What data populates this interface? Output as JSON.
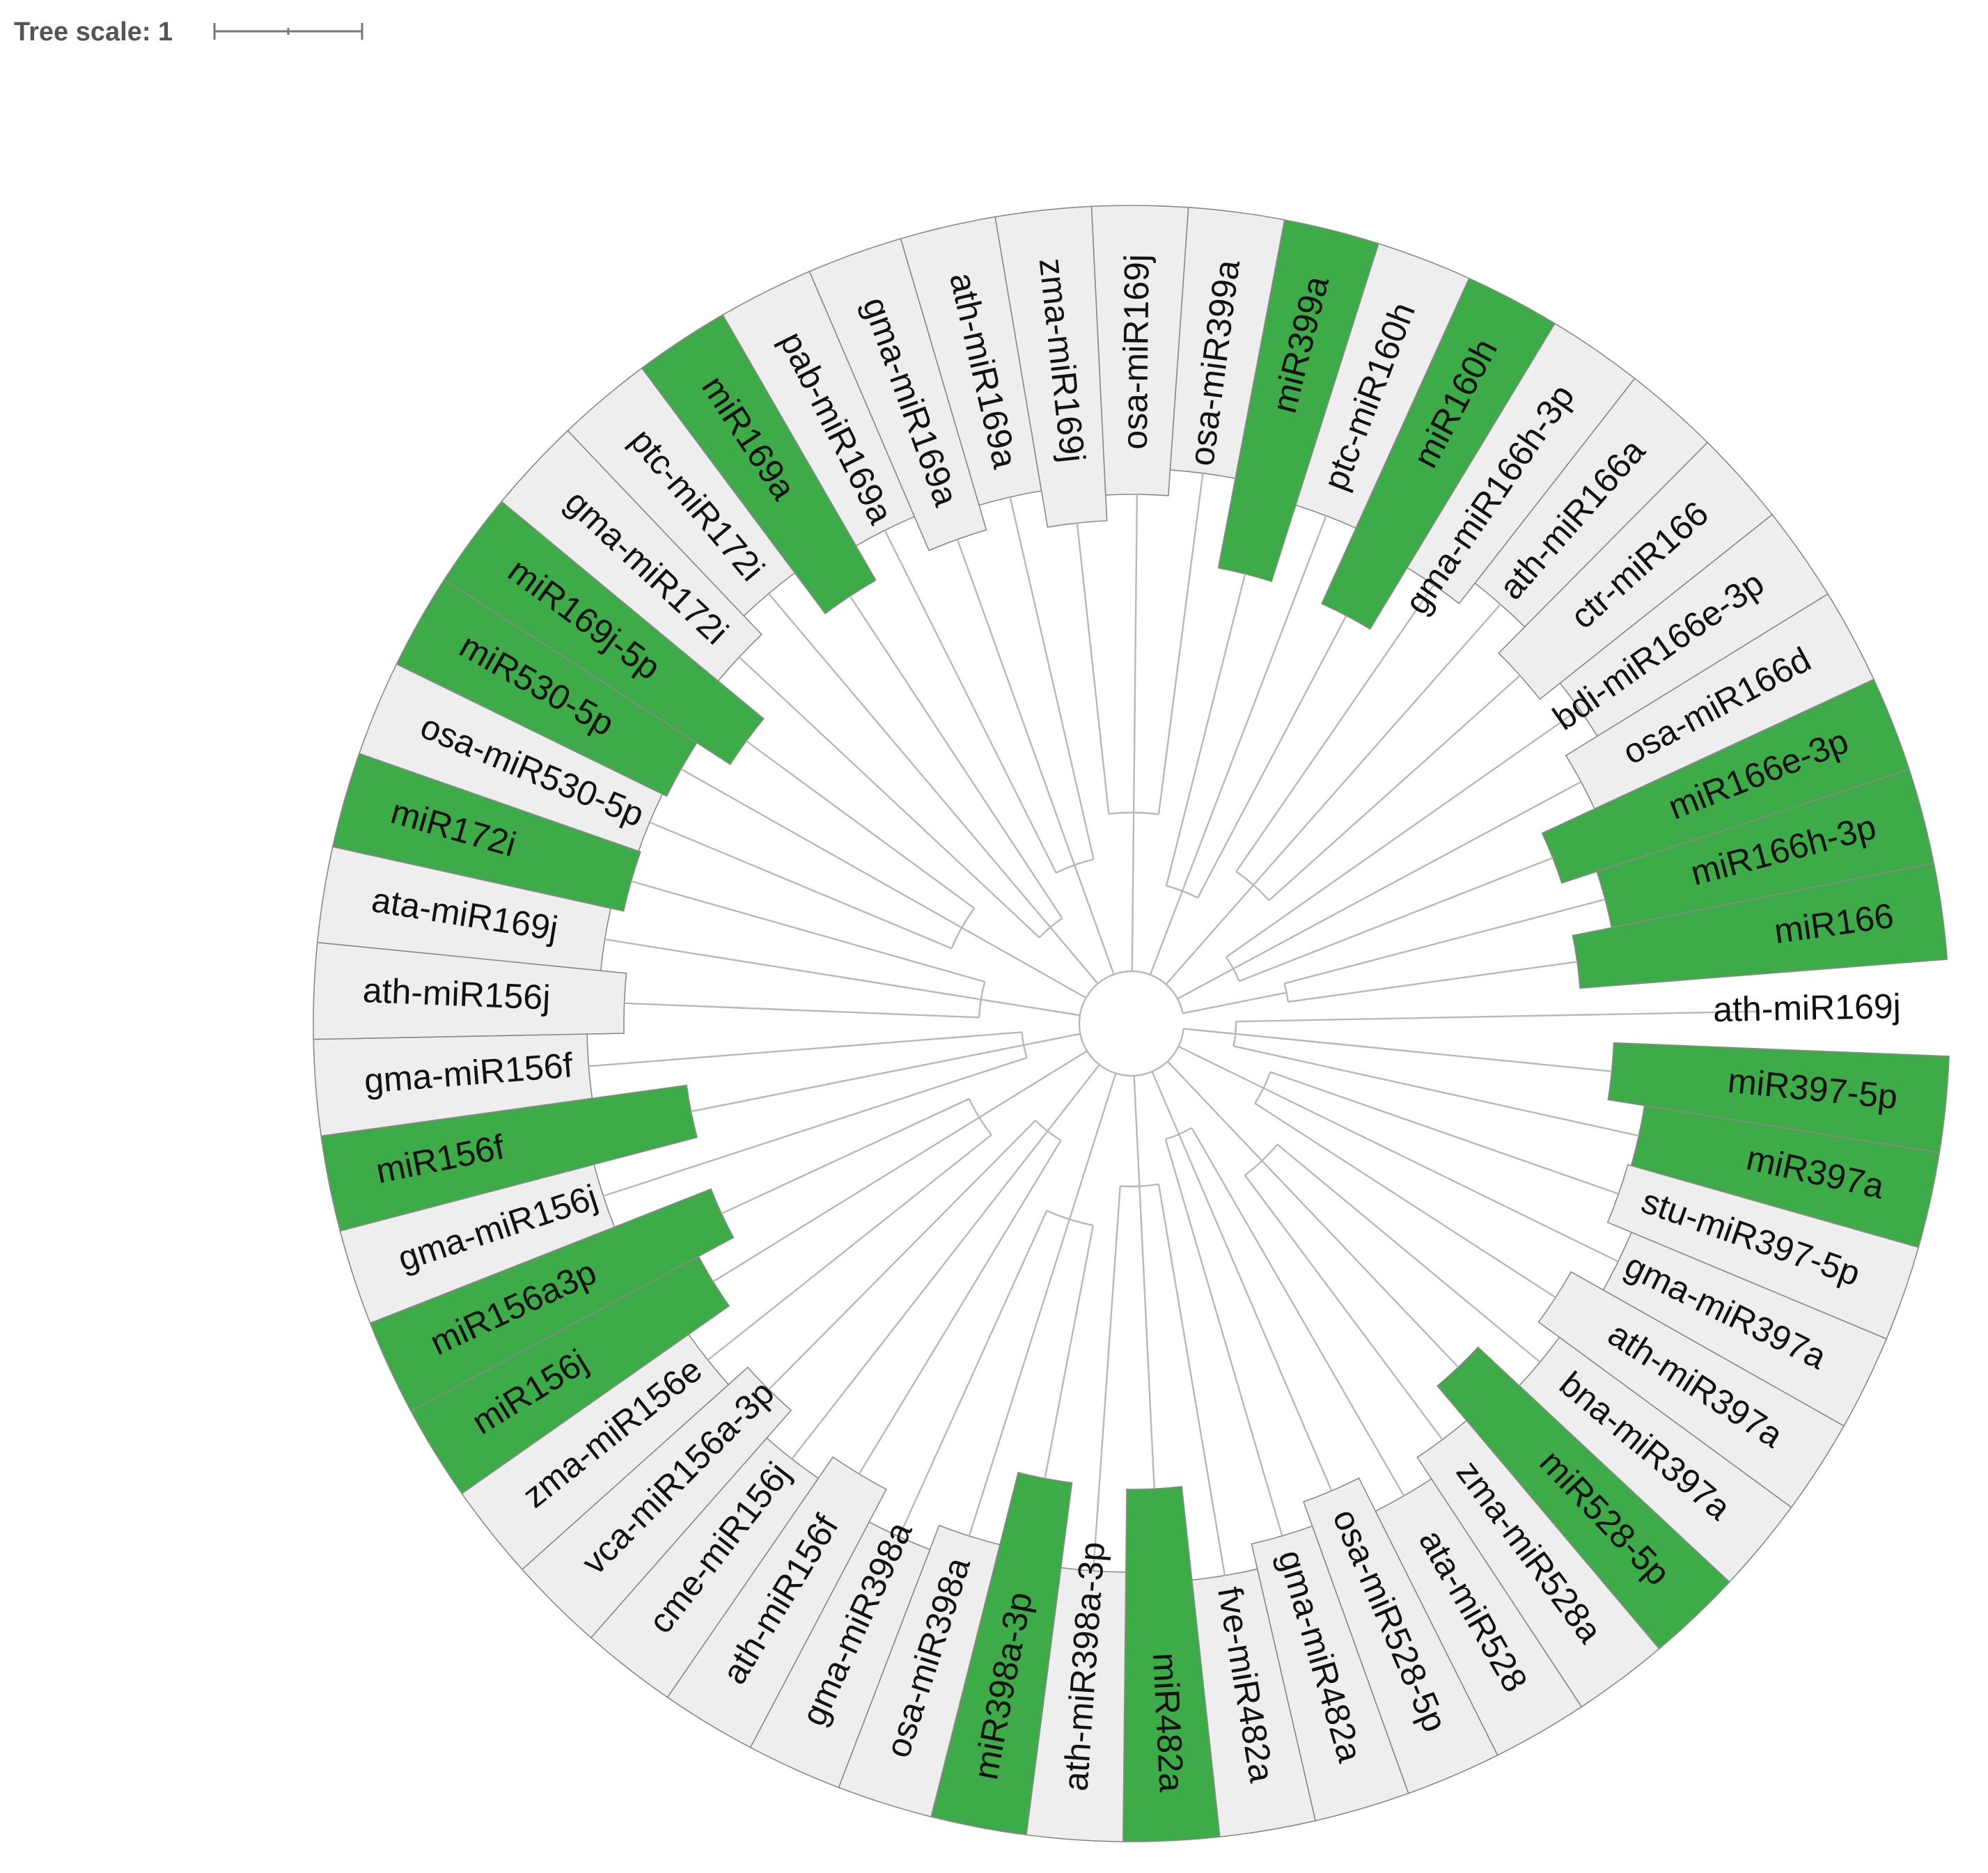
{
  "tree_scale": {
    "label": "Tree scale: 1"
  },
  "colors": {
    "highlight": "#3dab48",
    "plain": "#eeeeee",
    "none": "#ffffff",
    "branch": "#b8b8b8",
    "text": "#111111"
  },
  "leaves": [
    {
      "label": "ath-miR169j",
      "style": "none"
    },
    {
      "label": "miR397-5p",
      "style": "highlight"
    },
    {
      "label": "miR397a",
      "style": "highlight"
    },
    {
      "label": "stu-miR397-5p",
      "style": "plain"
    },
    {
      "label": "gma-miR397a",
      "style": "plain"
    },
    {
      "label": "ath-miR397a",
      "style": "plain"
    },
    {
      "label": "bna-miR397a",
      "style": "plain"
    },
    {
      "label": "miR528-5p",
      "style": "highlight"
    },
    {
      "label": "zma-miR528a",
      "style": "plain"
    },
    {
      "label": "ata-miR528",
      "style": "plain"
    },
    {
      "label": "osa-miR528-5p",
      "style": "plain"
    },
    {
      "label": "gma-miR482a",
      "style": "plain"
    },
    {
      "label": "fve-miR482a",
      "style": "plain"
    },
    {
      "label": "miR482a",
      "style": "highlight"
    },
    {
      "label": "ath-miR398a-3p",
      "style": "plain"
    },
    {
      "label": "miR398a-3p",
      "style": "highlight"
    },
    {
      "label": "osa-miR398a",
      "style": "plain"
    },
    {
      "label": "gma-miR398a",
      "style": "plain"
    },
    {
      "label": "ath-miR156f",
      "style": "plain"
    },
    {
      "label": "cme-miR156j",
      "style": "plain"
    },
    {
      "label": "vca-miR156a-3p",
      "style": "plain"
    },
    {
      "label": "zma-miR156e",
      "style": "plain"
    },
    {
      "label": "miR156j",
      "style": "highlight"
    },
    {
      "label": "miR156a3p",
      "style": "highlight"
    },
    {
      "label": "gma-miR156j",
      "style": "plain"
    },
    {
      "label": "miR156f",
      "style": "highlight"
    },
    {
      "label": "gma-miR156f",
      "style": "plain"
    },
    {
      "label": "ath-miR156j",
      "style": "plain"
    },
    {
      "label": "ata-miR169j",
      "style": "plain"
    },
    {
      "label": "miR172i",
      "style": "highlight"
    },
    {
      "label": "osa-miR530-5p",
      "style": "plain"
    },
    {
      "label": "miR530-5p",
      "style": "highlight"
    },
    {
      "label": "miR169j-5p",
      "style": "highlight"
    },
    {
      "label": "gma-miR172i",
      "style": "plain"
    },
    {
      "label": "ptc-miR172i",
      "style": "plain"
    },
    {
      "label": "miR169a",
      "style": "highlight"
    },
    {
      "label": "pab-miR169a",
      "style": "plain"
    },
    {
      "label": "gma-miR169a",
      "style": "plain"
    },
    {
      "label": "ath-miR169a",
      "style": "plain"
    },
    {
      "label": "zma-miR169j",
      "style": "plain"
    },
    {
      "label": "osa-miR169j",
      "style": "plain"
    },
    {
      "label": "osa-miR399a",
      "style": "plain"
    },
    {
      "label": "miR399a",
      "style": "highlight"
    },
    {
      "label": "ptc-miR160h",
      "style": "plain"
    },
    {
      "label": "miR160h",
      "style": "highlight"
    },
    {
      "label": "gma-miR166h-3p",
      "style": "plain"
    },
    {
      "label": "ath-miR166a",
      "style": "plain"
    },
    {
      "label": "ctr-miR166",
      "style": "plain"
    },
    {
      "label": "bdi-miR166e-3p",
      "style": "plain"
    },
    {
      "label": "osa-miR166d",
      "style": "plain"
    },
    {
      "label": "miR166e-3p",
      "style": "highlight"
    },
    {
      "label": "miR166h-3p",
      "style": "highlight"
    },
    {
      "label": "miR166",
      "style": "highlight"
    }
  ]
}
